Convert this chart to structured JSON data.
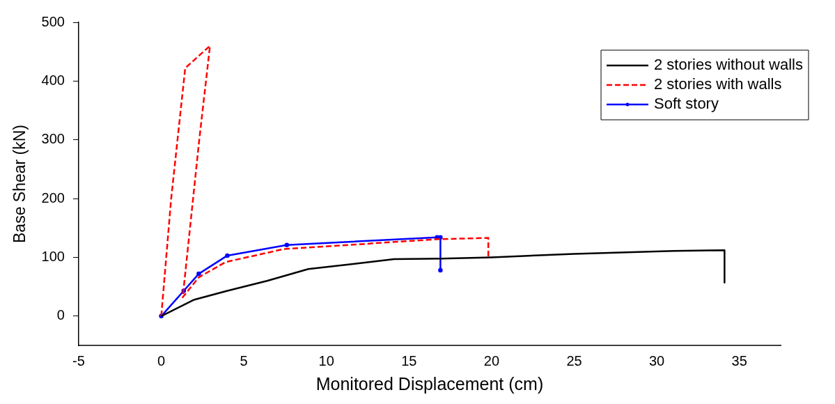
{
  "chart_data": {
    "type": "line",
    "xlabel": "Monitored Displacement (cm)",
    "ylabel": "Base Shear (kN)",
    "xlim": [
      -5,
      37.5
    ],
    "xticks": [
      -5,
      0,
      5,
      10,
      15,
      20,
      25,
      30,
      35
    ],
    "ylim": [
      -50,
      500
    ],
    "yticks": [
      0,
      100,
      200,
      300,
      400,
      500
    ],
    "grid": false,
    "legend": "top right",
    "series": [
      {
        "name": "2 stories without walls",
        "color": "#000000",
        "line_style": "solid",
        "marker": "none",
        "x": [
          0,
          2,
          4,
          6.4,
          8.9,
          11.7,
          14.1,
          17,
          20,
          25,
          31,
          34.1,
          34.1
        ],
        "values": [
          0,
          28,
          43,
          60,
          80,
          89,
          97,
          98,
          100,
          106,
          111,
          112,
          57
        ]
      },
      {
        "name": "2 stories with walls",
        "color": "#ff0000",
        "line_style": "dashed",
        "marker": "none",
        "x": [
          0,
          0.6,
          1.45,
          2.95,
          2.3,
          1.3,
          2.27,
          3.9,
          7.4,
          16.8,
          19.8,
          19.8
        ],
        "values": [
          0,
          200,
          422,
          460,
          300,
          32,
          66,
          92,
          114,
          131,
          133,
          100
        ]
      },
      {
        "name": "Soft story",
        "color": "#0000ff",
        "line_style": "solid",
        "marker": "circle",
        "x": [
          0,
          1.36,
          2.27,
          4,
          7.6,
          16.7,
          16.9,
          16.9
        ],
        "values": [
          0,
          43,
          72,
          103,
          121,
          134,
          134,
          78
        ]
      }
    ]
  }
}
